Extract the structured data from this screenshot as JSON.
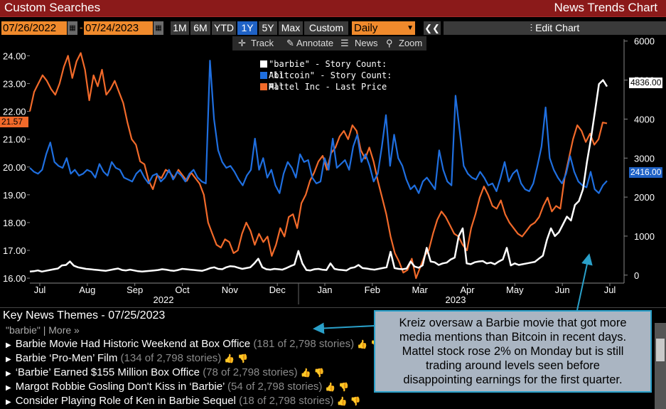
{
  "window": {
    "left_title": "Custom Searches",
    "right_title": "News Trends Chart"
  },
  "toolbar": {
    "start_date": "07/26/2022",
    "end_date": "07/24/2023",
    "ranges": [
      "1M",
      "6M",
      "YTD",
      "1Y",
      "5Y",
      "Max",
      "Custom"
    ],
    "active_range": "1Y",
    "period": "Daily",
    "edit_label": "Edit Chart"
  },
  "subtools": {
    "track": "Track",
    "annotate": "Annotate",
    "news": "News",
    "zoom": "Zoom"
  },
  "legend": [
    {
      "label": "\"barbie\" - Story Count: All",
      "color": "#ffffff"
    },
    {
      "label": "\"bitcoin\" - Story Count: All",
      "color": "#1f6fe0"
    },
    {
      "label": "Mattel Inc - Last Price",
      "color": "#f26a2a"
    }
  ],
  "badges": {
    "mattel_last": "21.57",
    "barbie_last": "4836.00",
    "bitcoin_last": "2416.00"
  },
  "chart_data": {
    "type": "line",
    "x_labels": [
      "Jul",
      "Aug",
      "Sep",
      "Oct",
      "Nov",
      "Dec",
      "Jan",
      "Feb",
      "Mar",
      "Apr",
      "May",
      "Jun",
      "Jul"
    ],
    "year_labels": [
      "2022",
      "2023"
    ],
    "left_axis": {
      "ticks": [
        "16.00",
        "17.00",
        "18.00",
        "19.00",
        "20.00",
        "21.00",
        "22.00",
        "23.00",
        "24.00"
      ],
      "ylim": [
        15.9,
        24.6
      ]
    },
    "right_axis": {
      "ticks": [
        "0",
        "1000",
        "2000",
        "3000",
        "4000",
        "5000",
        "6000"
      ],
      "ylim": [
        -150,
        6050
      ]
    },
    "series": [
      {
        "name": "\"barbie\" - Story Count: All",
        "axis": "right",
        "color": "#ffffff",
        "values": [
          90,
          100,
          120,
          90,
          110,
          130,
          150,
          170,
          250,
          260,
          350,
          240,
          200,
          180,
          160,
          150,
          140,
          130,
          120,
          110,
          130,
          150,
          170,
          130,
          120,
          140,
          120,
          100,
          90,
          100,
          110,
          120,
          130,
          150,
          140,
          120,
          110,
          130,
          160,
          150,
          140,
          130,
          120,
          110,
          140,
          180,
          200,
          160,
          150,
          200,
          230,
          220,
          190,
          160,
          180,
          200,
          300,
          420,
          200,
          150,
          140,
          160,
          150,
          140,
          180,
          230,
          270,
          620,
          300,
          130,
          120,
          150,
          160,
          140,
          130,
          300,
          160,
          140,
          130,
          120,
          180,
          200,
          260,
          180,
          170,
          150,
          140,
          160,
          180,
          200,
          600,
          180,
          160,
          150,
          170,
          350,
          220,
          190,
          250,
          700,
          350,
          330,
          260,
          300,
          320,
          400,
          450,
          1000,
          1200,
          300,
          280,
          330,
          350,
          360,
          300,
          320,
          280,
          350,
          400,
          700,
          250,
          300,
          260,
          280,
          300,
          320,
          340,
          420,
          500,
          900,
          1200,
          1000,
          1100,
          1300,
          1500,
          1400,
          1800,
          1900,
          2200,
          2900,
          3500,
          4200,
          4900,
          5000,
          4836
        ]
      },
      {
        "name": "\"bitcoin\" - Story Count: All",
        "axis": "right",
        "color": "#1f6fe0",
        "values": [
          2750,
          2650,
          2600,
          2700,
          3100,
          3400,
          2900,
          2800,
          2750,
          3000,
          2600,
          2700,
          2550,
          2600,
          2700,
          2650,
          2500,
          2850,
          2650,
          2550,
          2900,
          2750,
          2700,
          2500,
          2450,
          2400,
          2600,
          2700,
          2500,
          2350,
          2550,
          2600,
          2400,
          2500,
          2700,
          2450,
          2650,
          2550,
          2400,
          2600,
          2700,
          2500,
          2400,
          2350,
          5500,
          4000,
          3200,
          2900,
          2750,
          2800,
          2650,
          2450,
          2300,
          2550,
          2700,
          3500,
          2700,
          3000,
          2500,
          2700,
          2300,
          2100,
          2600,
          2900,
          2750,
          2500,
          3100,
          2900,
          2950,
          2500,
          2350,
          2400,
          3000,
          2700,
          3500,
          2750,
          2850,
          2950,
          2700,
          3300,
          3600,
          2900,
          3100,
          2800,
          2400,
          2600,
          3300,
          4100,
          2800,
          3600,
          3000,
          2800,
          2450,
          2200,
          2300,
          2100,
          2400,
          2500,
          2350,
          2200,
          3200,
          2700,
          2400,
          2300,
          4600,
          3700,
          2800,
          2600,
          2500,
          2450,
          2650,
          2500,
          2300,
          2350,
          2150,
          2500,
          2900,
          2400,
          2600,
          2700,
          2350,
          2200,
          2150,
          2350,
          2800,
          3300,
          4300,
          3000,
          2700,
          2500,
          2350,
          2600,
          3050,
          2650,
          2400,
          2300,
          2250,
          2650,
          2200,
          2100,
          2300,
          2416
        ]
      },
      {
        "name": "Mattel Inc - Last Price",
        "axis": "left",
        "color": "#f26a2a",
        "values": [
          22.0,
          22.7,
          23.0,
          23.3,
          23.1,
          22.8,
          22.6,
          23.0,
          23.6,
          24.0,
          23.2,
          23.8,
          24.1,
          23.5,
          22.4,
          23.3,
          22.9,
          23.5,
          22.6,
          22.8,
          23.1,
          22.7,
          22.3,
          21.6,
          21.0,
          20.8,
          20.2,
          20.1,
          19.5,
          19.2,
          19.7,
          19.6,
          19.9,
          19.8,
          19.6,
          19.9,
          19.7,
          19.5,
          19.8,
          19.6,
          19.4,
          19.0,
          18.0,
          17.6,
          17.2,
          17.1,
          17.4,
          17.3,
          16.9,
          17.0,
          17.6,
          18.0,
          17.7,
          17.2,
          17.6,
          17.3,
          17.5,
          16.8,
          17.2,
          17.8,
          17.5,
          18.2,
          18.3,
          17.8,
          18.7,
          19.0,
          19.5,
          19.8,
          20.2,
          20.4,
          19.9,
          20.5,
          20.7,
          21.1,
          21.3,
          21.0,
          21.5,
          21.3,
          20.6,
          20.3,
          20.7,
          20.2,
          19.5,
          18.9,
          18.3,
          17.5,
          16.9,
          16.6,
          16.2,
          16.3,
          16.7,
          16.0,
          16.4,
          16.8,
          17.0,
          17.6,
          18.1,
          18.4,
          18.2,
          17.9,
          17.6,
          17.5,
          17.2,
          17.0,
          17.8,
          18.3,
          18.9,
          19.3,
          19.0,
          18.6,
          18.5,
          18.8,
          18.3,
          18.0,
          17.8,
          17.6,
          17.5,
          17.7,
          17.9,
          18.0,
          18.2,
          18.6,
          18.9,
          18.4,
          18.6,
          18.5,
          19.6,
          20.3,
          21.0,
          21.5,
          21.3,
          20.9,
          21.2,
          20.8,
          21.0,
          21.6,
          21.57
        ]
      }
    ]
  },
  "news": {
    "header": "Key News Themes - 07/25/2023",
    "query": "\"barbie\" | More »",
    "items": [
      {
        "title": "Barbie Movie Had Historic Weekend at Box Office",
        "count": "(181 of 2,798 stories)"
      },
      {
        "title": "Barbie ‘Pro-Men’ Film",
        "count": "(134 of 2,798 stories)"
      },
      {
        "title": "‘Barbie’ Earned $155 Million Box Office",
        "count": "(78 of 2,798 stories)"
      },
      {
        "title": "Margot Robbie Gosling Don't Kiss in ‘Barbie’",
        "count": "(54 of 2,798 stories)"
      },
      {
        "title": "Consider Playing Role of Ken in Barbie Sequel",
        "count": "(18 of 2,798 stories)"
      }
    ]
  },
  "annotation": {
    "lines": [
      "Kreiz oversaw a Barbie movie that got more",
      "media mentions than Bitcoin in recent days.",
      "Mattel stock rose 2% on Monday but is still",
      "trading around levels seen before",
      "disappointing earnings for the first quarter."
    ]
  }
}
